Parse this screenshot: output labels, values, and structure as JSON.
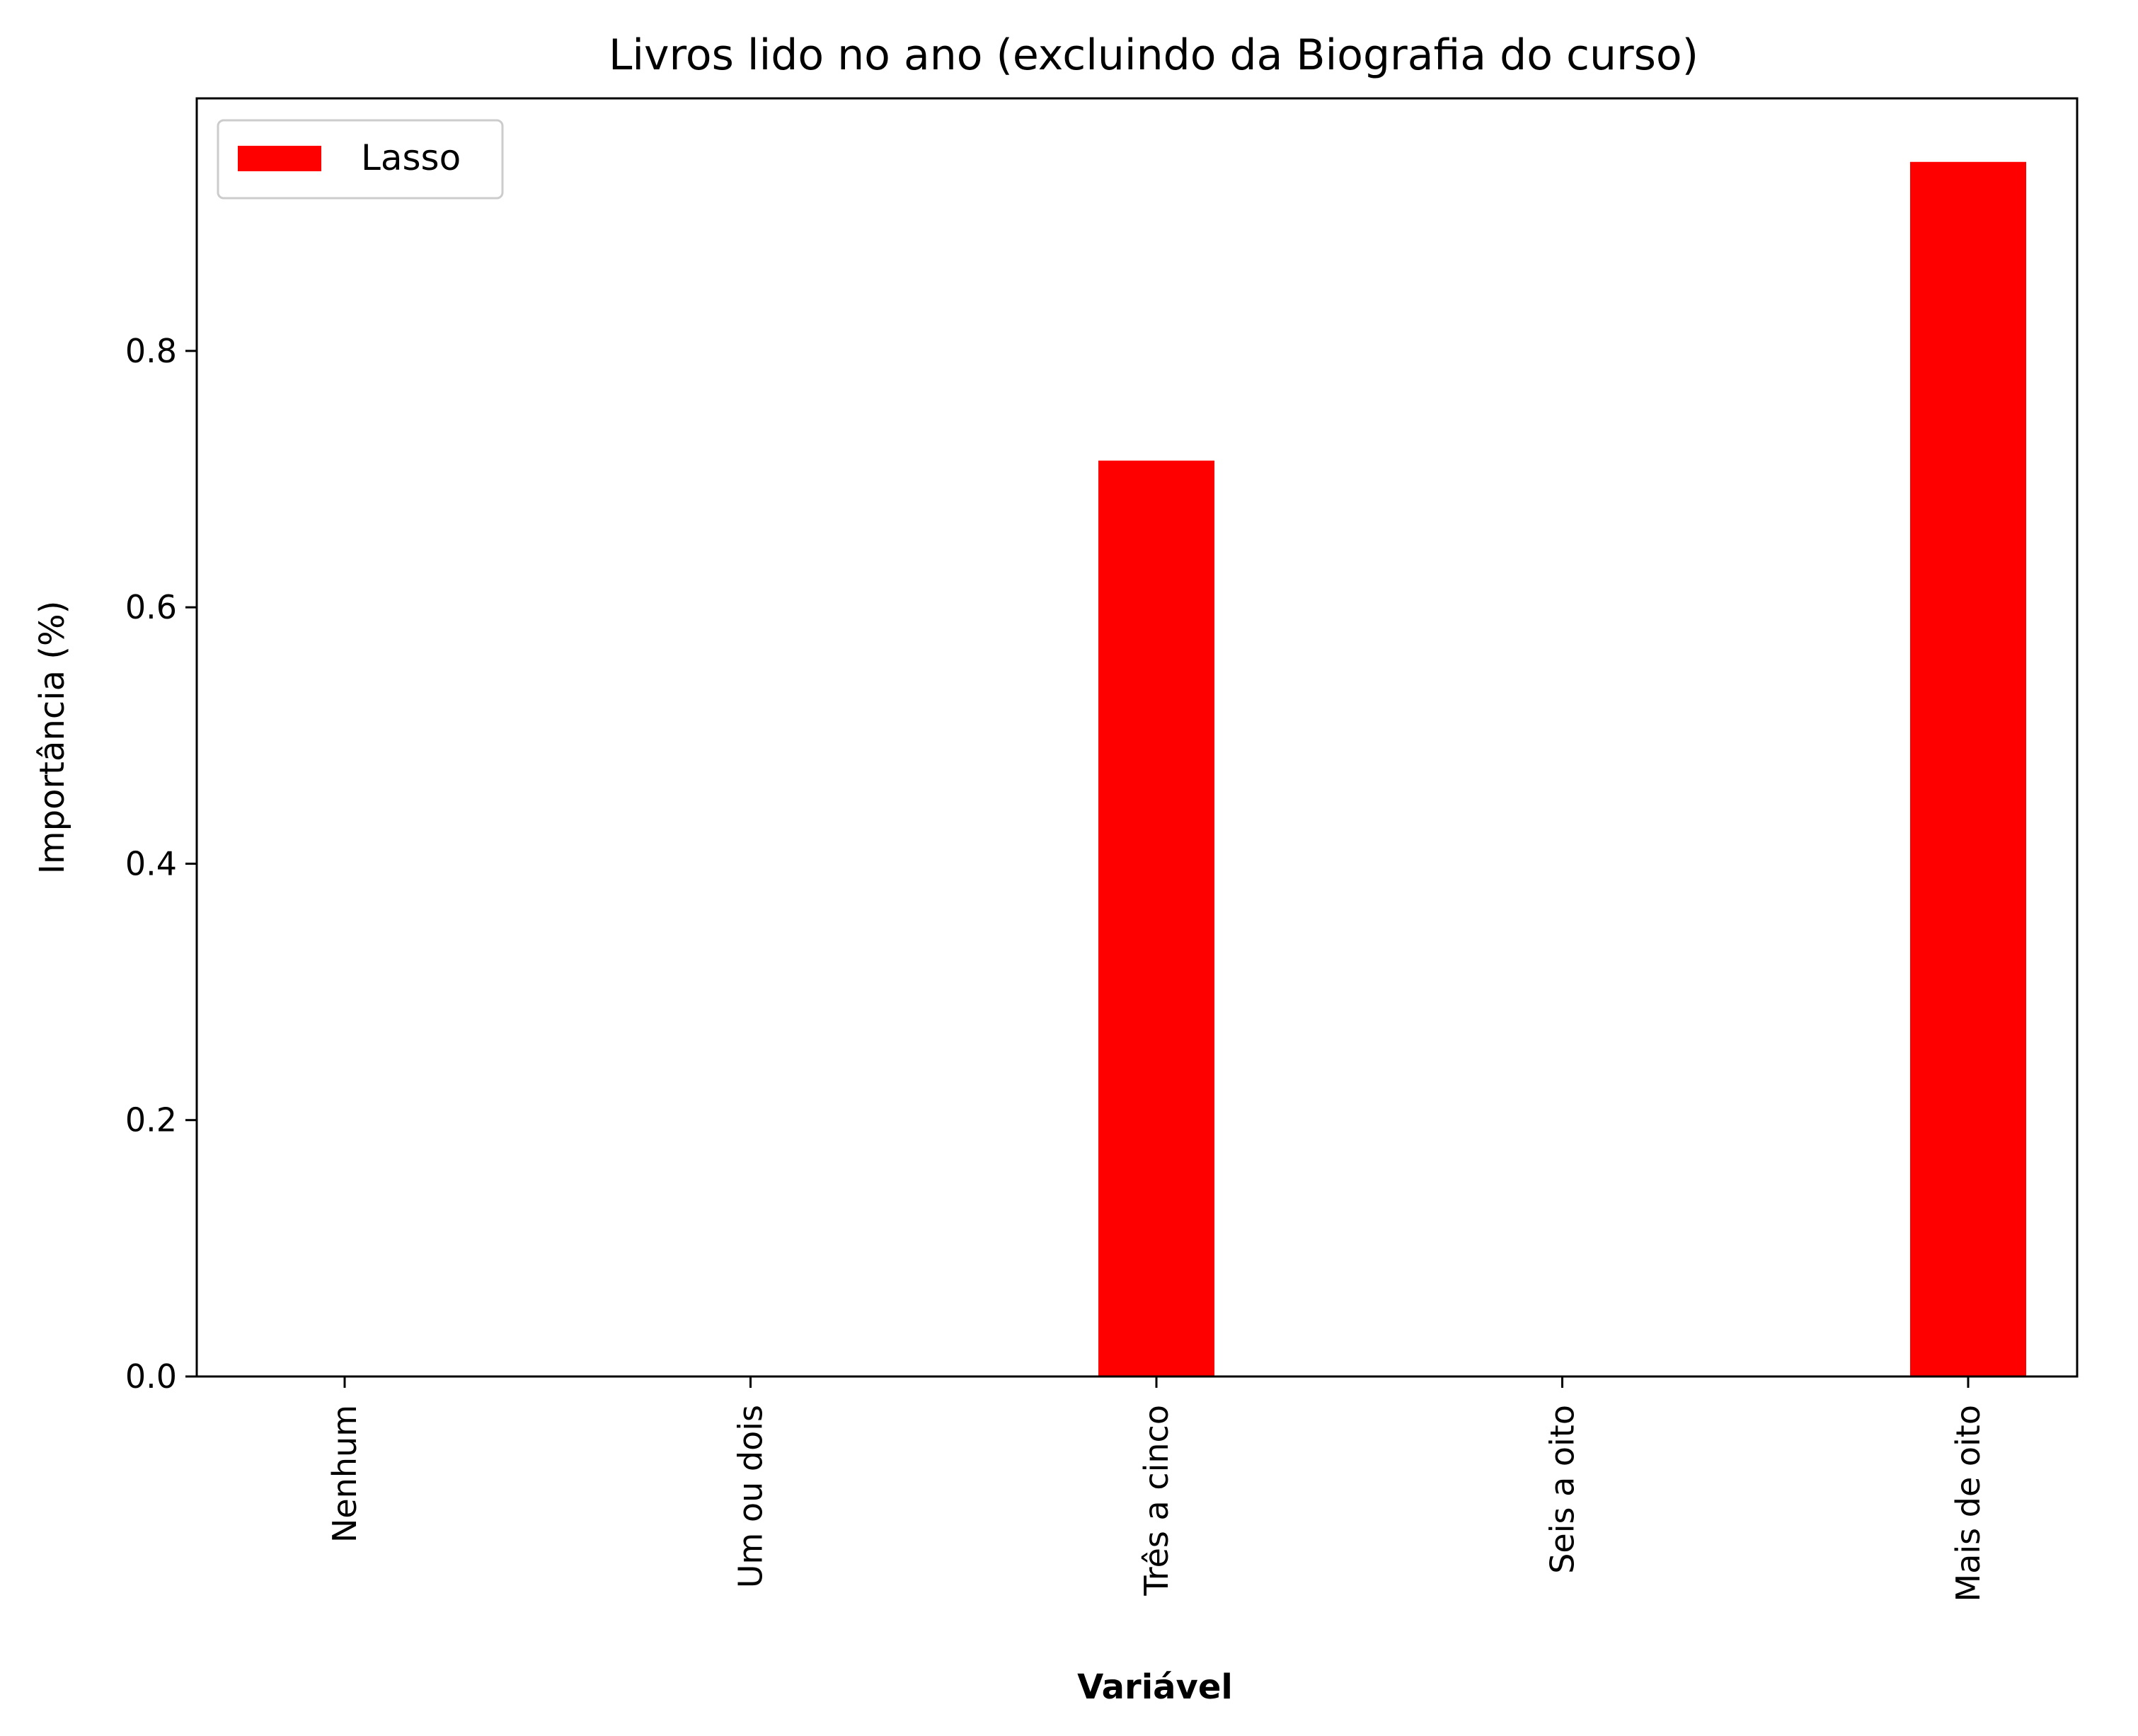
{
  "chart_data": {
    "type": "bar",
    "title": "Livros lido no ano (excluindo da Biografia do curso)",
    "xlabel": "Variável",
    "ylabel": "Importância (%)",
    "categories": [
      "Nenhum",
      "Um ou dois",
      "Três a cinco",
      "Seis a oito",
      "Mais de oito"
    ],
    "series": [
      {
        "name": "Lasso",
        "values": [
          0.0,
          0.0,
          0.715,
          0.0,
          0.948
        ],
        "color": "#ff0000"
      }
    ],
    "ylim": [
      0,
      0.997
    ],
    "yticks": [
      "0.0",
      "0.2",
      "0.4",
      "0.6",
      "0.8"
    ],
    "ytick_values": [
      0.0,
      0.2,
      0.4,
      0.6,
      0.8
    ],
    "grid": false,
    "legend": "top-left"
  }
}
